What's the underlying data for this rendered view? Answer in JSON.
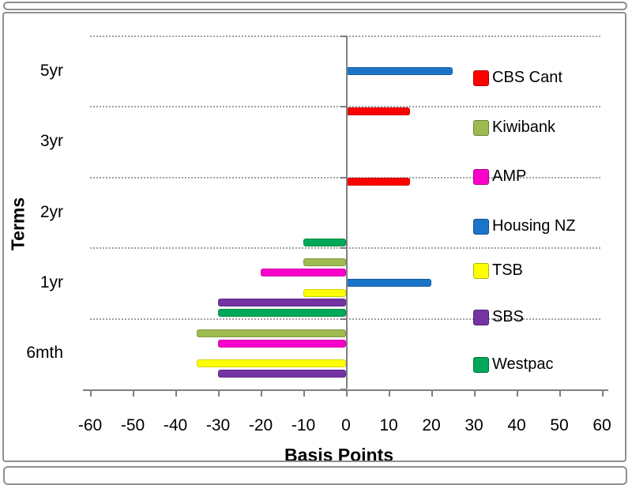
{
  "chart_data": {
    "type": "bar",
    "orientation": "horizontal",
    "title": "",
    "xlabel": "Basis Points",
    "ylabel": "Terms",
    "xlim": [
      -60,
      60
    ],
    "xticks": [
      -60,
      -50,
      -40,
      -30,
      -20,
      -10,
      0,
      10,
      20,
      30,
      40,
      50,
      60
    ],
    "grid": "dotted horizontal lines at category boundaries",
    "legend_position": "right overlay inside plot",
    "categories": [
      "5yr",
      "3yr",
      "2yr",
      "1yr",
      "6mth"
    ],
    "series": [
      {
        "name": "CBS Cant",
        "color": "#FE0000",
        "values": [
          0,
          15,
          15,
          0,
          0
        ]
      },
      {
        "name": "Kiwibank",
        "color": "#9DBB50",
        "values": [
          0,
          0,
          0,
          -10,
          -35
        ]
      },
      {
        "name": "AMP",
        "color": "#FB00CB",
        "values": [
          0,
          0,
          0,
          -20,
          -30
        ]
      },
      {
        "name": "Housing NZ",
        "color": "#1A75C9",
        "values": [
          25,
          0,
          0,
          20,
          0
        ]
      },
      {
        "name": "TSB",
        "color": "#FFFF00",
        "values": [
          0,
          0,
          0,
          -10,
          -35
        ]
      },
      {
        "name": "SBS",
        "color": "#7434A4",
        "values": [
          0,
          0,
          0,
          -30,
          -30
        ]
      },
      {
        "name": "Westpac",
        "color": "#00A857",
        "values": [
          0,
          0,
          -10,
          -30,
          0
        ]
      }
    ]
  },
  "frame": {
    "border_color": "#8f8f8f",
    "background": "#ffffff"
  }
}
